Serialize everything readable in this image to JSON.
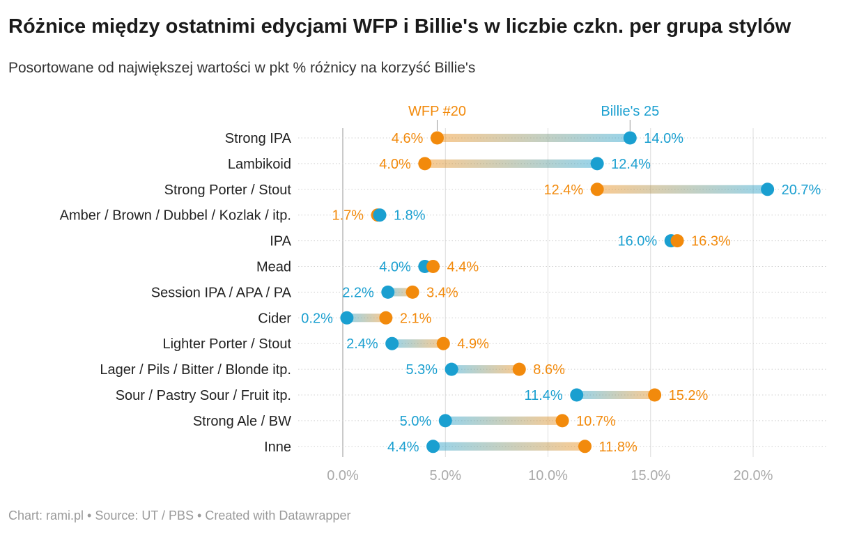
{
  "title": "Różnice między ostatnimi edycjami WFP i Billie's w liczbie czkn. per grupa stylów",
  "subtitle": "Posortowane od największej wartości w pkt % różnicy na korzyść Billie's",
  "footer": "Chart: rami.pl • Source: UT / PBS • Created with Datawrapper",
  "colors": {
    "wfp": "#f28a0c",
    "billies": "#1a9fd0",
    "grid": "#dcdcdc",
    "tick": "#aaaaaa"
  },
  "chart_data": {
    "type": "dot-range",
    "series": [
      {
        "name": "WFP #20",
        "key": "wfp",
        "values": [
          4.6,
          4.0,
          12.4,
          1.7,
          16.3,
          4.4,
          3.4,
          2.1,
          4.9,
          8.6,
          15.2,
          10.7,
          11.8
        ]
      },
      {
        "name": "Billie's 25",
        "key": "billies",
        "values": [
          14.0,
          12.4,
          20.7,
          1.8,
          16.0,
          4.0,
          2.2,
          0.2,
          2.4,
          5.3,
          11.4,
          5.0,
          4.4
        ]
      }
    ],
    "categories": [
      "Strong IPA",
      "Lambikoid",
      "Strong Porter / Stout",
      "Amber / Brown / Dubbel / Kozlak / itp.",
      "IPA",
      "Mead",
      "Session IPA / APA / PA",
      "Cider",
      "Lighter Porter / Stout",
      "Lager / Pils / Bitter / Blonde itp.",
      "Sour / Pastry Sour / Fruit itp.",
      "Strong Ale / BW",
      "Inne"
    ],
    "value_labels": {
      "wfp": [
        "4.6%",
        "4.0%",
        "12.4%",
        "1.7%",
        "16.3%",
        "4.4%",
        "3.4%",
        "2.1%",
        "4.9%",
        "8.6%",
        "15.2%",
        "10.7%",
        "11.8%"
      ],
      "billies": [
        "14.0%",
        "12.4%",
        "20.7%",
        "1.8%",
        "16.0%",
        "4.0%",
        "2.2%",
        "0.2%",
        "2.4%",
        "5.3%",
        "11.4%",
        "5.0%",
        "4.4%"
      ]
    },
    "x_ticks": [
      0,
      5,
      10,
      15,
      20
    ],
    "x_tick_labels": [
      "0.0%",
      "5.0%",
      "10.0%",
      "15.0%",
      "20.0%"
    ],
    "xlim": [
      -2.2,
      23.5
    ],
    "legend_labels": {
      "wfp": "WFP #20",
      "billies": "Billie's 25"
    }
  }
}
